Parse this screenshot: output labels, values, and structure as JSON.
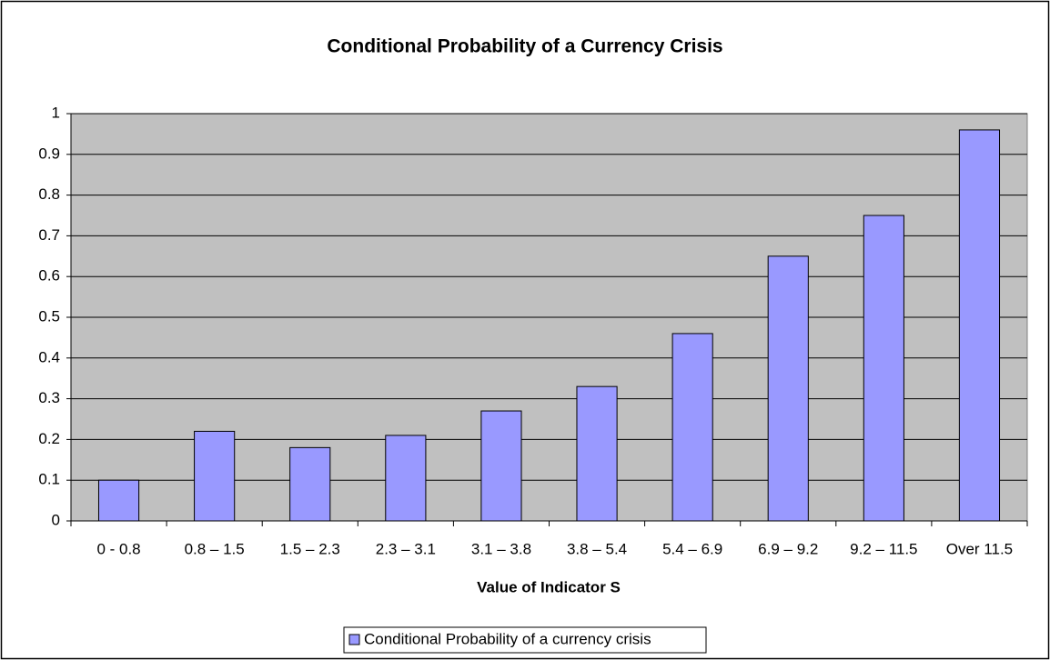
{
  "chart_data": {
    "type": "bar",
    "title": "Conditional Probability of a Currency Crisis",
    "x_label": "Value of Indicator S",
    "categories": [
      "0 - 0.8",
      "0.8 – 1.5",
      "1.5 – 2.3",
      "2.3 – 3.1",
      "3.1 – 3.8",
      "3.8 – 5.4",
      "5.4 – 6.9",
      "6.9 – 9.2",
      "9.2 – 11.5",
      "Over 11.5"
    ],
    "series": [
      {
        "name": "Conditional Probability of a currency crisis",
        "color": "#9999ff",
        "values": [
          0.1,
          0.22,
          0.18,
          0.21,
          0.27,
          0.33,
          0.46,
          0.65,
          0.75,
          0.96
        ]
      }
    ],
    "ylim": [
      0,
      1
    ],
    "yticks": [
      0,
      0.1,
      0.2,
      0.3,
      0.4,
      0.5,
      0.6,
      0.7,
      0.8,
      0.9,
      1
    ],
    "grid": true,
    "legend": "bottom"
  }
}
